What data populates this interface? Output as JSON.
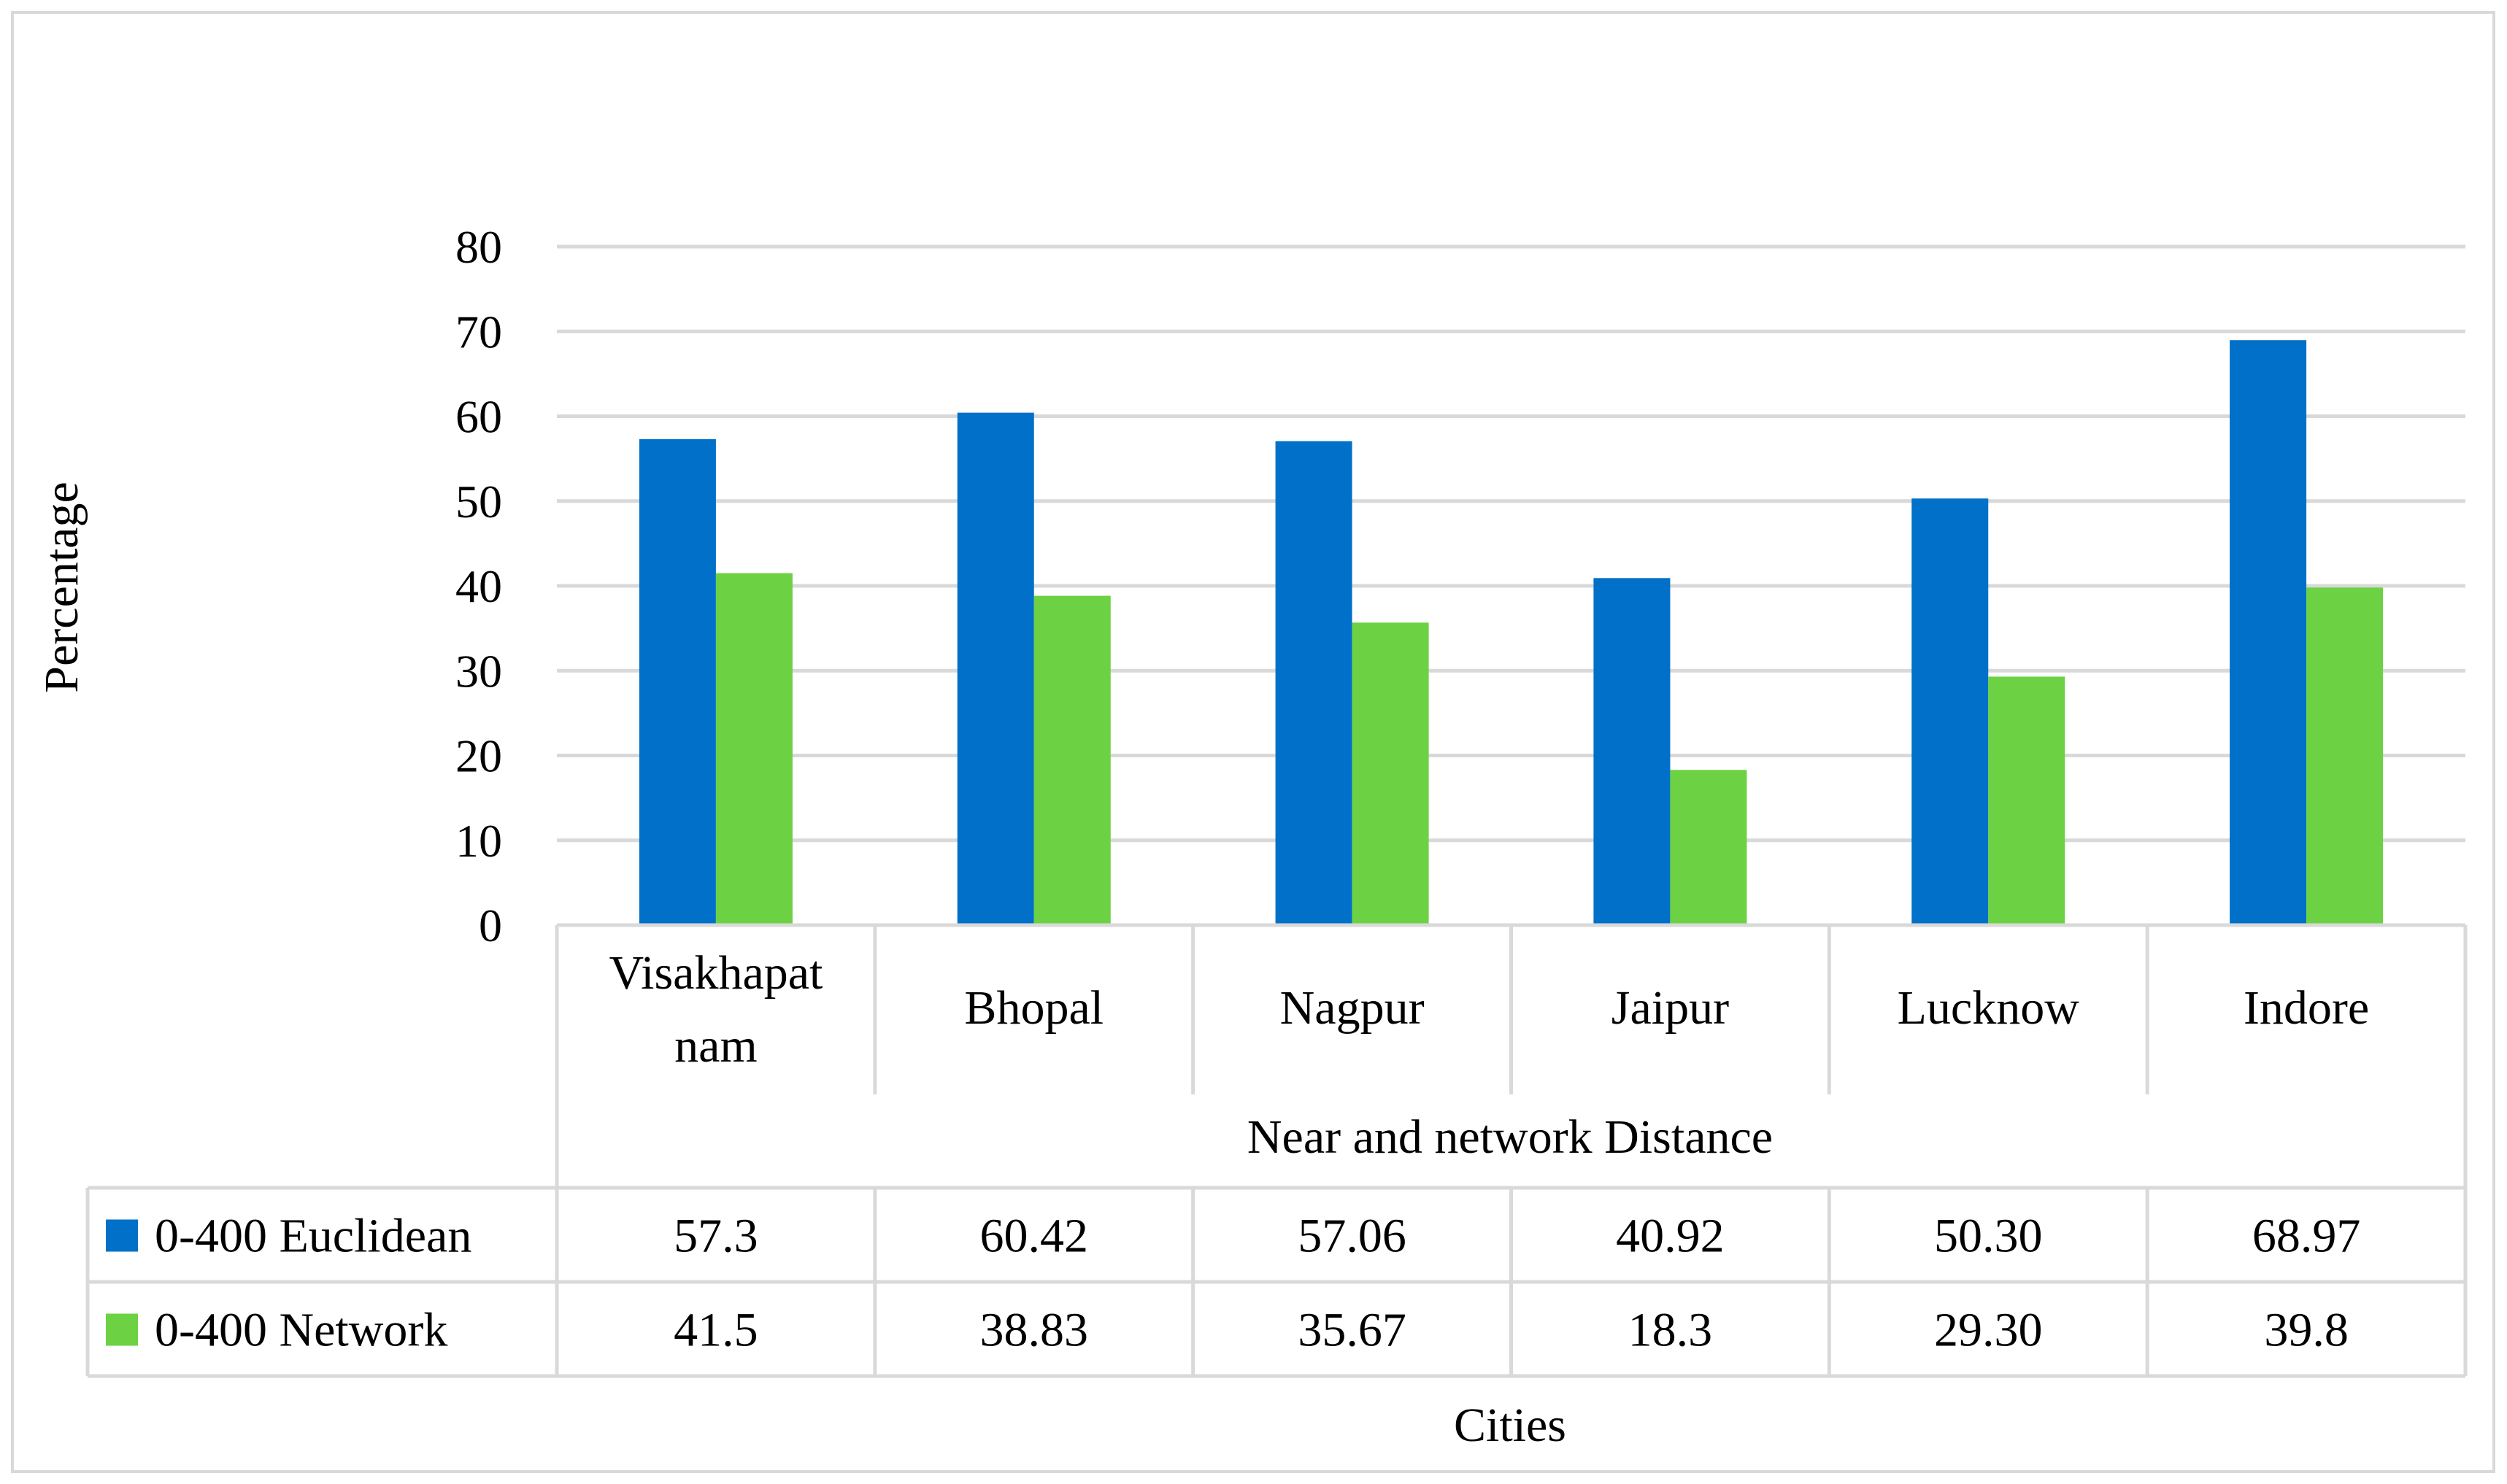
{
  "chart_data": {
    "type": "bar",
    "title": "",
    "ylabel": "Percentage",
    "xlabel": "Cities",
    "category_group_label": "Near and network  Distance",
    "ylim": [
      0,
      80
    ],
    "yticks": [
      "0",
      "10",
      "20",
      "30",
      "40",
      "50",
      "60",
      "70",
      "80"
    ],
    "grid": true,
    "categories": [
      "Visakhapatnam",
      "Bhopal",
      "Nagpur",
      "Jaipur",
      "Lucknow",
      "Indore"
    ],
    "category_lines": [
      [
        "Visakhapat",
        "nam"
      ],
      [
        "Bhopal"
      ],
      [
        "Nagpur"
      ],
      [
        "Jaipur"
      ],
      [
        "Lucknow"
      ],
      [
        "Indore"
      ]
    ],
    "series": [
      {
        "name": "0-400 Euclidean",
        "color": "#0070C8",
        "values": [
          57.3,
          60.42,
          57.06,
          40.92,
          50.3,
          68.97
        ],
        "labels": [
          "57.3",
          "60.42",
          "57.06",
          "40.92",
          "50.30",
          "68.97"
        ]
      },
      {
        "name": "0-400  Network",
        "color": "#6CD243",
        "values": [
          41.5,
          38.83,
          35.67,
          18.3,
          29.3,
          39.8
        ],
        "labels": [
          "41.5",
          "38.83",
          "35.67",
          "18.3",
          "29.30",
          "39.8"
        ]
      }
    ],
    "legend": "data-table"
  }
}
